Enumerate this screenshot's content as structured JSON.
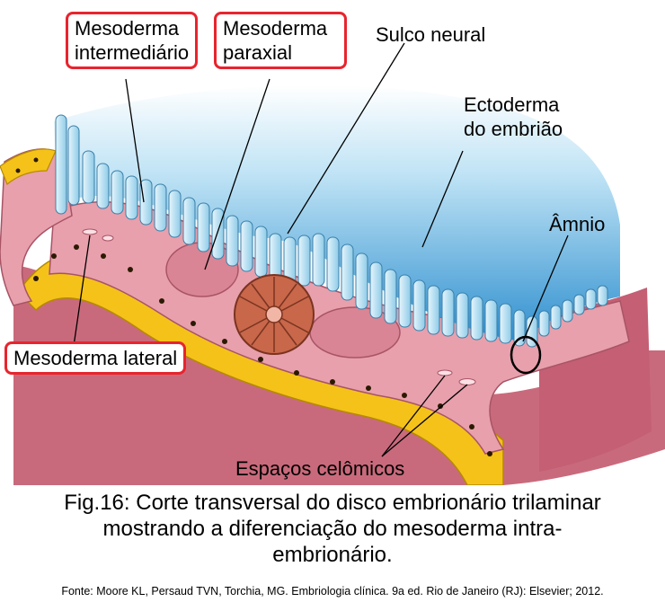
{
  "labels": {
    "intermediate": [
      "Mesoderma",
      "intermediário"
    ],
    "paraxial": [
      "Mesoderma",
      "paraxial"
    ],
    "neural_groove": "Sulco neural",
    "ectoderm": [
      "Ectoderma",
      "do embrião"
    ],
    "amnion": "Âmnio",
    "lateral": "Mesoderma lateral",
    "coelomic": "Espaços celômicos"
  },
  "caption": {
    "line1": "Fig.16: Corte transversal do disco embrionário trilaminar",
    "line2": "mostrando a diferenciação do mesoderma intra-",
    "line3": "embrionário."
  },
  "source": "Fonte: Moore KL, Persaud TVN, Torchia, MG. Embriologia clínica. 9a ed. Rio de Janeiro (RJ): Elsevier; 2012.",
  "colors": {
    "highlight_box": "#e8242e",
    "ectoderm_blue": "#a9d8ee",
    "amniotic_cavity": "#2f8fcf",
    "mesoderm_pink": "#e8a0ac",
    "tissue_dark_pink": "#c96a7c",
    "endoderm_yellow": "#f5c21a",
    "notochord_brown": "#c8674a"
  }
}
